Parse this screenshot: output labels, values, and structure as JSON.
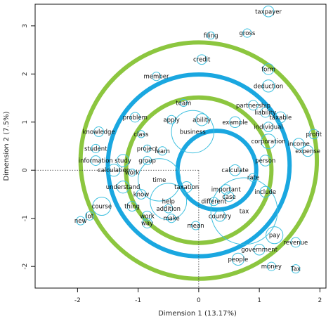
{
  "chart_data": {
    "type": "scatter",
    "xlabel": "Dimension 1 (13.17%)",
    "ylabel": "Dimension 2 (7.5%)",
    "xlim": [
      -2.7,
      2.1
    ],
    "ylim": [
      -2.45,
      3.45
    ],
    "x_ticks": [
      -2,
      -1,
      0,
      1,
      2
    ],
    "y_ticks": [
      -2,
      -1,
      0,
      1,
      2,
      3
    ],
    "colors": {
      "outer_rings": "#8cc63f",
      "inner_rings": "#1aa7e0",
      "points": "#3ec0df"
    },
    "rings": [
      {
        "color": "outer_rings",
        "cx": 0.0,
        "cy": 0.2,
        "r": 1.95
      },
      {
        "color": "outer_rings",
        "cx": 0.0,
        "cy": 0.0,
        "r": 1.2
      },
      {
        "color": "inner_rings",
        "cx": 0.0,
        "cy": 0.1,
        "r": 1.5
      },
      {
        "color": "inner_rings",
        "cx": 0.3,
        "cy": 0.0,
        "r": 0.65
      }
    ],
    "points": [
      {
        "label": "taxpayer",
        "x": 1.15,
        "y": 3.3,
        "r": 0.09
      },
      {
        "label": "filing",
        "x": 0.2,
        "y": 2.8,
        "r": 0.06
      },
      {
        "label": "gross",
        "x": 0.8,
        "y": 2.85,
        "r": 0.07
      },
      {
        "label": "credit",
        "x": 0.05,
        "y": 2.3,
        "r": 0.08
      },
      {
        "label": "form",
        "x": 1.15,
        "y": 2.1,
        "r": 0.09
      },
      {
        "label": "member",
        "x": -0.7,
        "y": 1.95,
        "r": 0.07
      },
      {
        "label": "deduction",
        "x": 1.15,
        "y": 1.75,
        "r": 0.1
      },
      {
        "label": "partnership",
        "x": 0.9,
        "y": 1.35,
        "r": 0.08
      },
      {
        "label": "team",
        "x": -0.25,
        "y": 1.4,
        "r": 0.06
      },
      {
        "label": "liability",
        "x": 1.1,
        "y": 1.2,
        "r": 0.08
      },
      {
        "label": "taxable",
        "x": 1.35,
        "y": 1.1,
        "r": 0.09
      },
      {
        "label": "problem",
        "x": -1.05,
        "y": 1.1,
        "r": 0.08
      },
      {
        "label": "apply",
        "x": -0.45,
        "y": 1.05,
        "r": 0.07
      },
      {
        "label": "ability",
        "x": 0.05,
        "y": 1.05,
        "r": 0.1
      },
      {
        "label": "example",
        "x": 0.6,
        "y": 1.0,
        "r": 0.09
      },
      {
        "label": "individual",
        "x": 1.15,
        "y": 0.9,
        "r": 0.08
      },
      {
        "label": "knowledge",
        "x": -1.65,
        "y": 0.8,
        "r": 0.08
      },
      {
        "label": "class",
        "x": -0.95,
        "y": 0.75,
        "r": 0.06
      },
      {
        "label": "business",
        "x": -0.1,
        "y": 0.8,
        "r": 0.35
      },
      {
        "label": "profit",
        "x": 1.9,
        "y": 0.75,
        "r": 0.08
      },
      {
        "label": "corporation",
        "x": 1.15,
        "y": 0.6,
        "r": 0.12
      },
      {
        "label": "income",
        "x": 1.65,
        "y": 0.55,
        "r": 0.09
      },
      {
        "label": "student",
        "x": -1.7,
        "y": 0.45,
        "r": 0.07
      },
      {
        "label": "project",
        "x": -0.85,
        "y": 0.45,
        "r": 0.06
      },
      {
        "label": "learn",
        "x": -0.6,
        "y": 0.4,
        "r": 0.07
      },
      {
        "label": "expense",
        "x": 1.8,
        "y": 0.4,
        "r": 0.09
      },
      {
        "label": "information",
        "x": -1.7,
        "y": 0.2,
        "r": 0.08
      },
      {
        "label": "study",
        "x": -1.25,
        "y": 0.2,
        "r": 0.1
      },
      {
        "label": "group",
        "x": -0.85,
        "y": 0.2,
        "r": 0.07
      },
      {
        "label": "person",
        "x": 1.1,
        "y": 0.2,
        "r": 0.09
      },
      {
        "label": "calculation",
        "x": -1.4,
        "y": 0.0,
        "r": 0.1
      },
      {
        "label": "work",
        "x": -1.1,
        "y": -0.05,
        "r": 0.06
      },
      {
        "label": "calculate",
        "x": 0.6,
        "y": 0.0,
        "r": 0.09
      },
      {
        "label": "time",
        "x": -0.65,
        "y": -0.2,
        "r": 0.35
      },
      {
        "label": "rate",
        "x": 0.9,
        "y": -0.15,
        "r": 0.07
      },
      {
        "label": "understand",
        "x": -1.25,
        "y": -0.35,
        "r": 0.1
      },
      {
        "label": "taxation",
        "x": -0.2,
        "y": -0.35,
        "r": 0.09
      },
      {
        "label": "important",
        "x": 0.45,
        "y": -0.4,
        "r": 0.08
      },
      {
        "label": "know",
        "x": -0.95,
        "y": -0.5,
        "r": 0.08
      },
      {
        "label": "include",
        "x": 1.1,
        "y": -0.45,
        "r": 0.09
      },
      {
        "label": "help",
        "x": -0.5,
        "y": -0.65,
        "r": 0.3
      },
      {
        "label": "case",
        "x": 0.5,
        "y": -0.55,
        "r": 0.08
      },
      {
        "label": "different",
        "x": 0.25,
        "y": -0.65,
        "r": 0.07
      },
      {
        "label": "course",
        "x": -1.6,
        "y": -0.75,
        "r": 0.15
      },
      {
        "label": "thing",
        "x": -1.1,
        "y": -0.75,
        "r": 0.08
      },
      {
        "label": "addition",
        "x": -0.5,
        "y": -0.8,
        "r": 0.07
      },
      {
        "label": "tax",
        "x": 0.75,
        "y": -0.85,
        "r": 0.55
      },
      {
        "label": "work",
        "x": -0.85,
        "y": -0.95,
        "r": 0.08
      },
      {
        "label": "country",
        "x": 0.35,
        "y": -0.95,
        "r": 0.09
      },
      {
        "label": "lot",
        "x": -1.8,
        "y": -0.95,
        "r": 0.07
      },
      {
        "label": "make",
        "x": -0.45,
        "y": -1.0,
        "r": 0.07
      },
      {
        "label": "way",
        "x": -0.85,
        "y": -1.1,
        "r": 0.08
      },
      {
        "label": "new",
        "x": -1.95,
        "y": -1.05,
        "r": 0.07
      },
      {
        "label": "mean",
        "x": -0.05,
        "y": -1.15,
        "r": 0.07
      },
      {
        "label": "pay",
        "x": 1.25,
        "y": -1.35,
        "r": 0.14
      },
      {
        "label": "revenue",
        "x": 1.6,
        "y": -1.5,
        "r": 0.08
      },
      {
        "label": "government",
        "x": 1.0,
        "y": -1.65,
        "r": 0.09
      },
      {
        "label": "people",
        "x": 0.65,
        "y": -1.85,
        "r": 0.1
      },
      {
        "label": "money",
        "x": 1.2,
        "y": -2.0,
        "r": 0.07
      },
      {
        "label": "Tax",
        "x": 1.6,
        "y": -2.05,
        "r": 0.07
      }
    ]
  }
}
